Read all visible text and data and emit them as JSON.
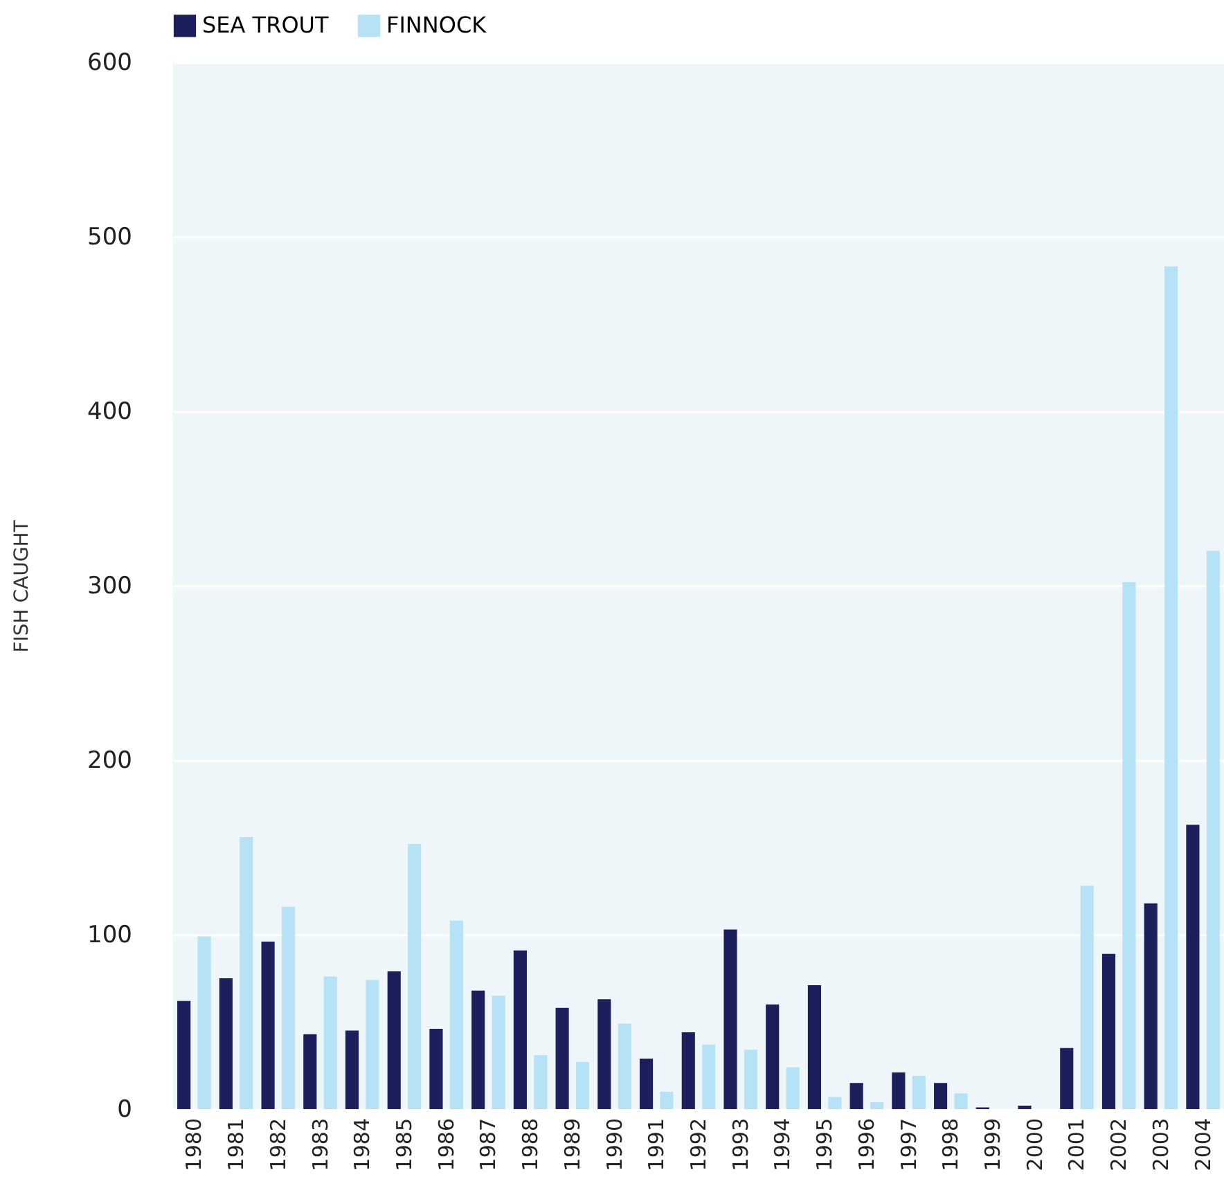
{
  "chart_data": {
    "type": "bar",
    "ylabel": "FISH CAUGHT",
    "categories": [
      "1980",
      "1981",
      "1982",
      "1983",
      "1984",
      "1985",
      "1986",
      "1987",
      "1988",
      "1989",
      "1990",
      "1991",
      "1992",
      "1993",
      "1994",
      "1995",
      "1996",
      "1997",
      "1998",
      "1999",
      "2000",
      "2001",
      "2002",
      "2003",
      "2004"
    ],
    "series": [
      {
        "name": "SEA TROUT",
        "color": "#1b1f5c",
        "values": [
          62,
          75,
          96,
          43,
          45,
          79,
          46,
          68,
          91,
          58,
          63,
          29,
          44,
          103,
          60,
          71,
          15,
          21,
          15,
          1,
          2,
          35,
          89,
          118,
          163
        ]
      },
      {
        "name": "FINNOCK",
        "color": "#b5e2f4",
        "values": [
          99,
          156,
          116,
          76,
          74,
          152,
          108,
          65,
          31,
          27,
          49,
          10,
          37,
          34,
          24,
          7,
          4,
          19,
          9,
          0,
          0,
          128,
          302,
          483,
          320
        ]
      }
    ],
    "ylim": [
      0,
      600
    ],
    "yticks": [
      0,
      100,
      200,
      300,
      400,
      500,
      600
    ],
    "grid": "y",
    "legend": "top"
  }
}
